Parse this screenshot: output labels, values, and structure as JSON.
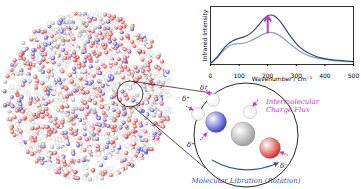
{
  "chart_data": {
    "type": "line",
    "x_label": "Wavenumber / cm⁻¹",
    "y_label": "Infrared Intensity",
    "x": [
      0,
      25,
      50,
      75,
      100,
      125,
      150,
      175,
      200,
      225,
      250,
      275,
      300,
      325,
      350,
      375,
      400,
      425,
      450,
      475,
      500
    ],
    "series": [
      {
        "color": "#8a9cc4",
        "values": [
          0.02,
          0.12,
          0.26,
          0.34,
          0.36,
          0.38,
          0.43,
          0.5,
          0.55,
          0.54,
          0.47,
          0.37,
          0.27,
          0.19,
          0.14,
          0.11,
          0.09,
          0.07,
          0.06,
          0.05,
          0.05
        ]
      },
      {
        "color": "#34477e",
        "values": [
          0.02,
          0.14,
          0.3,
          0.4,
          0.45,
          0.49,
          0.58,
          0.72,
          0.84,
          0.83,
          0.7,
          0.52,
          0.36,
          0.25,
          0.18,
          0.13,
          0.1,
          0.08,
          0.07,
          0.06,
          0.05
        ]
      }
    ],
    "xlim": [
      0,
      500
    ],
    "ylim": [
      0,
      1
    ],
    "xticks": [
      0,
      100,
      200,
      300,
      400,
      500
    ],
    "tick_labels": "x",
    "grid": false
  },
  "diagram": {
    "flux_label": [
      "Intermolecular",
      "Charge Flux"
    ],
    "libration_label": "Molecular Libration (Rotation)",
    "charges": [
      "δ⁺",
      "δ⁺",
      "δ⁺",
      "δ⁻"
    ]
  }
}
